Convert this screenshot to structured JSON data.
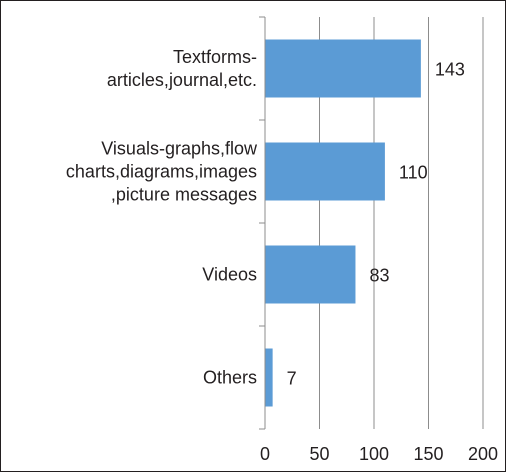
{
  "chart_data": {
    "type": "bar",
    "orientation": "horizontal",
    "categories": [
      "Textforms-\narticles,journal,etc.",
      "Visuals-graphs,flow\ncharts,diagrams,images\n,picture messages",
      "Videos",
      "Others"
    ],
    "values": [
      143,
      110,
      83,
      7
    ],
    "xlim": [
      0,
      200
    ],
    "xticks": [
      0,
      50,
      100,
      150,
      200
    ],
    "grid": "vertical",
    "legend": "none",
    "bar_color": "#5b9bd5",
    "gridline_color": "#8c8c8c",
    "axis_color": "#8c8c8c",
    "text_color": "#231f20"
  }
}
